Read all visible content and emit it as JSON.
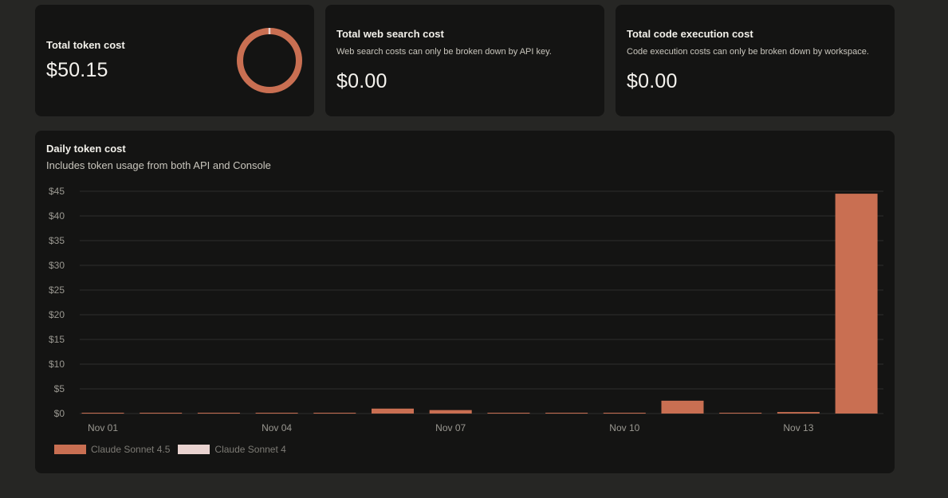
{
  "token_card": {
    "title": "Total token cost",
    "value": "$50.15",
    "donut_share": 0.99
  },
  "web_card": {
    "title": "Total web search cost",
    "subtitle": "Web search costs can only be broken down by API key.",
    "value": "$0.00"
  },
  "code_card": {
    "title": "Total code execution cost",
    "subtitle": "Code execution costs can only be broken down by workspace.",
    "value": "$0.00"
  },
  "daily_card": {
    "title": "Daily token cost",
    "subtitle": "Includes token usage from both API and Console"
  },
  "colors": {
    "sonnet45": "#c96f52",
    "sonnet4": "#e9d3d0",
    "grid": "#2e2e2c",
    "tick_text": "#9a9891"
  },
  "chart_data": {
    "type": "bar",
    "stacked": true,
    "categories": [
      "Nov 01",
      "Nov 02",
      "Nov 03",
      "Nov 04",
      "Nov 05",
      "Nov 06",
      "Nov 07",
      "Nov 08",
      "Nov 09",
      "Nov 10",
      "Nov 11",
      "Nov 12",
      "Nov 13",
      "Nov 14"
    ],
    "x_tick_labels": [
      "Nov 01",
      "",
      "",
      "Nov 04",
      "",
      "",
      "Nov 07",
      "",
      "",
      "Nov 10",
      "",
      "",
      "Nov 13",
      ""
    ],
    "series": [
      {
        "name": "Claude Sonnet 4.5",
        "color": "#c96f52",
        "values": [
          0.05,
          0.05,
          0.05,
          0.05,
          0.02,
          1.0,
          0.7,
          0.05,
          0.05,
          0.05,
          2.6,
          0.1,
          0.3,
          44.5
        ]
      },
      {
        "name": "Claude Sonnet 4",
        "color": "#e9d3d0",
        "values": [
          0,
          0,
          0,
          0,
          0,
          0,
          0,
          0,
          0,
          0,
          0,
          0,
          0,
          0
        ]
      }
    ],
    "y_ticks": [
      0,
      5,
      10,
      15,
      20,
      25,
      30,
      35,
      40,
      45
    ],
    "y_tick_labels": [
      "$0",
      "$5",
      "$10",
      "$15",
      "$20",
      "$25",
      "$30",
      "$35",
      "$40",
      "$45"
    ],
    "ylim": [
      0,
      45
    ],
    "grid": true,
    "legend_position": "bottom-left"
  }
}
